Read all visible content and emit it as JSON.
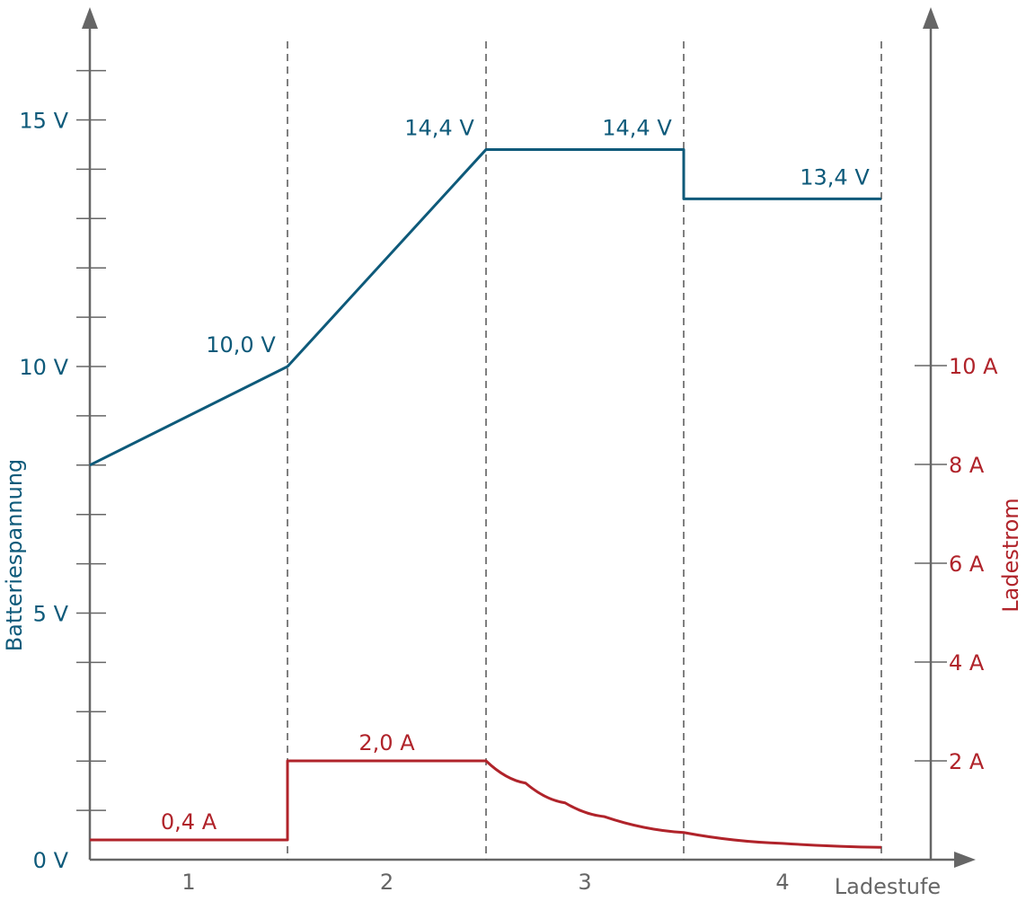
{
  "chart_data": {
    "type": "line",
    "xlabel": "Ladestufe",
    "y_left_label": "Batteriespannung",
    "y_right_label": "Ladestrom",
    "x_categories": [
      "1",
      "2",
      "3",
      "4"
    ],
    "y_left_ticks": [
      "0 V",
      "5 V",
      "10 V",
      "15 V"
    ],
    "y_left_tick_values": [
      0,
      5,
      10,
      15
    ],
    "y_right_ticks": [
      "2 A",
      "4 A",
      "6 A",
      "8 A",
      "10 A"
    ],
    "y_right_tick_values": [
      2,
      4,
      6,
      8,
      10
    ],
    "y_left_range": [
      0,
      15
    ],
    "y_right_range": [
      0,
      10
    ],
    "series": [
      {
        "name": "Batteriespannung",
        "axis": "left",
        "color": "#0e5a7a",
        "points": [
          [
            0,
            8.0
          ],
          [
            1,
            10.0
          ],
          [
            2,
            14.4
          ],
          [
            3,
            14.4
          ],
          [
            3,
            13.4
          ],
          [
            4,
            13.4
          ]
        ]
      },
      {
        "name": "Ladestrom",
        "axis": "right",
        "color": "#b0232a",
        "points": [
          [
            0,
            0.4
          ],
          [
            1,
            0.4
          ],
          [
            1,
            2.0
          ],
          [
            2,
            2.0
          ],
          [
            2.2,
            1.55
          ],
          [
            2.4,
            1.15
          ],
          [
            2.6,
            0.87
          ],
          [
            3.0,
            0.55
          ],
          [
            3.5,
            0.33
          ],
          [
            4,
            0.25
          ]
        ]
      }
    ],
    "annotations": [
      {
        "text": "10,0 V",
        "axis": "left",
        "x": 1,
        "y": 10.0
      },
      {
        "text": "14,4 V",
        "axis": "left",
        "x": 2,
        "y": 14.4
      },
      {
        "text": "14,4 V",
        "axis": "left",
        "x": 3,
        "y": 14.4
      },
      {
        "text": "13,4 V",
        "axis": "left",
        "x": 4,
        "y": 13.4
      },
      {
        "text": "0,4 A",
        "axis": "right",
        "x": 0.5,
        "y": 0.4
      },
      {
        "text": "2,0 A",
        "axis": "right",
        "x": 1.5,
        "y": 2.0
      }
    ],
    "stage_boundaries": [
      1,
      2,
      3,
      4
    ],
    "grid": false
  }
}
